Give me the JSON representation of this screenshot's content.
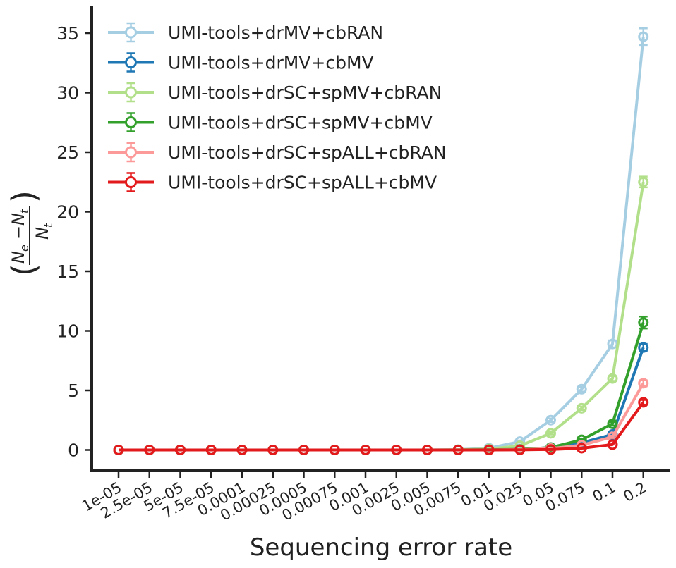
{
  "chart_data": {
    "type": "line",
    "title": "",
    "xlabel": "Sequencing error rate",
    "ylabel_latex": "(\\frac{N_e - N_t}{N_t})",
    "ylabel": {
      "open_paren": "(",
      "close_paren": ")",
      "numerator_a": "N",
      "numerator_a_sub": "e",
      "numerator_minus": "−",
      "numerator_b": "N",
      "numerator_b_sub": "t",
      "denominator": "N",
      "denominator_sub": "t"
    },
    "categories": [
      "1e-05",
      "2.5e-05",
      "5e-05",
      "7.5e-05",
      "0.0001",
      "0.00025",
      "0.0005",
      "0.00075",
      "0.001",
      "0.0025",
      "0.005",
      "0.0075",
      "0.01",
      "0.025",
      "0.05",
      "0.075",
      "0.1",
      "0.2"
    ],
    "y_ticks": [
      0,
      5,
      10,
      15,
      20,
      25,
      30,
      35
    ],
    "ylim": [
      -1.8,
      37.2
    ],
    "grid": false,
    "legend_position": "upper-left",
    "series": [
      {
        "name": "UMI-tools+drMV+cbRAN",
        "color": "#a6cee3",
        "values": [
          0,
          0,
          0,
          0,
          0,
          0,
          0,
          0,
          0,
          0,
          0,
          0.03,
          0.15,
          0.7,
          2.5,
          5.1,
          8.9,
          34.7
        ],
        "errors": [
          0,
          0,
          0,
          0,
          0,
          0,
          0,
          0,
          0,
          0,
          0,
          0.02,
          0.05,
          0.1,
          0.15,
          0.2,
          0.3,
          0.7
        ]
      },
      {
        "name": "UMI-tools+drMV+cbMV",
        "color": "#1f78b4",
        "values": [
          0,
          0,
          0,
          0,
          0,
          0,
          0,
          0,
          0,
          0,
          0,
          0,
          0.02,
          0.05,
          0.2,
          0.6,
          1.3,
          8.6
        ],
        "errors": [
          0,
          0,
          0,
          0,
          0,
          0,
          0,
          0,
          0,
          0,
          0,
          0,
          0.02,
          0.03,
          0.05,
          0.08,
          0.12,
          0.3
        ]
      },
      {
        "name": "UMI-tools+drSC+spMV+cbRAN",
        "color": "#b2df8a",
        "values": [
          0,
          0,
          0,
          0,
          0,
          0,
          0,
          0,
          0,
          0,
          0,
          0.02,
          0.08,
          0.35,
          1.4,
          3.5,
          6.0,
          22.5
        ],
        "errors": [
          0,
          0,
          0,
          0,
          0,
          0,
          0,
          0,
          0,
          0,
          0,
          0.02,
          0.04,
          0.06,
          0.1,
          0.15,
          0.2,
          0.45
        ]
      },
      {
        "name": "UMI-tools+drSC+spMV+cbMV",
        "color": "#33a02c",
        "values": [
          0,
          0,
          0,
          0,
          0,
          0,
          0,
          0,
          0,
          0,
          0,
          0,
          0.02,
          0.05,
          0.2,
          0.85,
          2.2,
          10.7
        ],
        "errors": [
          0,
          0,
          0,
          0,
          0,
          0,
          0,
          0,
          0,
          0,
          0,
          0,
          0.02,
          0.03,
          0.05,
          0.1,
          0.15,
          0.5
        ]
      },
      {
        "name": "UMI-tools+drSC+spALL+cbRAN",
        "color": "#fb9a99",
        "values": [
          0,
          0,
          0,
          0,
          0,
          0,
          0,
          0,
          0,
          0,
          0,
          0,
          0.01,
          0.03,
          0.12,
          0.4,
          1.1,
          5.6
        ],
        "errors": [
          0,
          0,
          0,
          0,
          0,
          0,
          0,
          0,
          0,
          0,
          0,
          0,
          0.01,
          0.02,
          0.04,
          0.06,
          0.1,
          0.25
        ]
      },
      {
        "name": "UMI-tools+drSC+spALL+cbMV",
        "color": "#e31a1c",
        "values": [
          0,
          0,
          0,
          0,
          0,
          0,
          0,
          0,
          0,
          0,
          0,
          0,
          0,
          0.01,
          0.04,
          0.15,
          0.45,
          4.0
        ],
        "errors": [
          0,
          0,
          0,
          0,
          0,
          0,
          0,
          0,
          0,
          0,
          0,
          0,
          0,
          0.01,
          0.02,
          0.04,
          0.06,
          0.2
        ]
      }
    ]
  }
}
